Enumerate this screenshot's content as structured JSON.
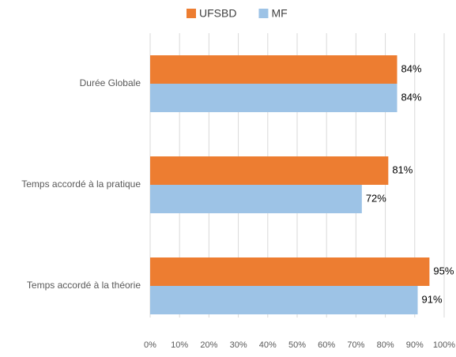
{
  "chart_data": {
    "type": "hbar",
    "categories": [
      "Durée Globale",
      "Temps accordé à la pratique",
      "Temps accordé à la théorie"
    ],
    "series": [
      {
        "name": "UFSBD",
        "color": "#ED7D31",
        "values": [
          84,
          81,
          95
        ],
        "value_labels": [
          "84%",
          "81%",
          "95%"
        ]
      },
      {
        "name": "MF",
        "color": "#9DC3E6",
        "values": [
          84,
          72,
          91
        ],
        "value_labels": [
          "84%",
          "72%",
          "91%"
        ]
      }
    ],
    "xlim": [
      0,
      100
    ],
    "xticks": [
      {
        "value": 0,
        "label": "0%"
      },
      {
        "value": 10,
        "label": "10%"
      },
      {
        "value": 20,
        "label": "20%"
      },
      {
        "value": 30,
        "label": "30%"
      },
      {
        "value": 40,
        "label": "40%"
      },
      {
        "value": 50,
        "label": "50%"
      },
      {
        "value": 60,
        "label": "60%"
      },
      {
        "value": 70,
        "label": "70%"
      },
      {
        "value": 80,
        "label": "80%"
      },
      {
        "value": 90,
        "label": "90%"
      },
      {
        "value": 100,
        "label": "100%"
      }
    ],
    "grid": true,
    "legend": "top"
  }
}
